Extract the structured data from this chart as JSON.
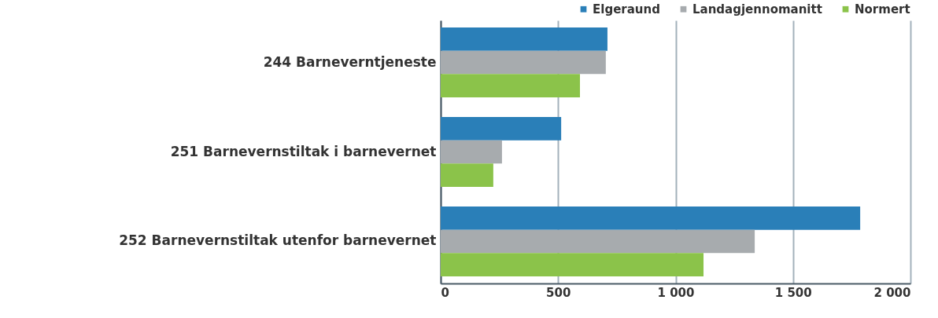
{
  "chart_data": {
    "type": "bar",
    "orientation": "horizontal",
    "categories": [
      "244 Barneverntjeneste",
      "251 Barnevernstiltak i barnevernet",
      "252 Barnevernstiltak utenfor barnevernet"
    ],
    "series": [
      {
        "name": "Elgeraund",
        "color": "#2a7fb8",
        "values": [
          710,
          513,
          1786
        ]
      },
      {
        "name": "Landagjennomanitt",
        "color": "#a7abae",
        "values": [
          703,
          261,
          1337
        ]
      },
      {
        "name": "Normert",
        "color": "#8bc34a",
        "values": [
          593,
          224,
          1119
        ]
      }
    ],
    "xlim": [
      0,
      2000
    ],
    "xticks": [
      0,
      {
        "value": 500,
        "label": "500"
      },
      {
        "value": 1000,
        "label": "1 000"
      },
      {
        "value": 1500,
        "label": "1 500"
      },
      {
        "value": 2000,
        "label": "2 000"
      }
    ],
    "grid": "x",
    "legend": "top right"
  }
}
